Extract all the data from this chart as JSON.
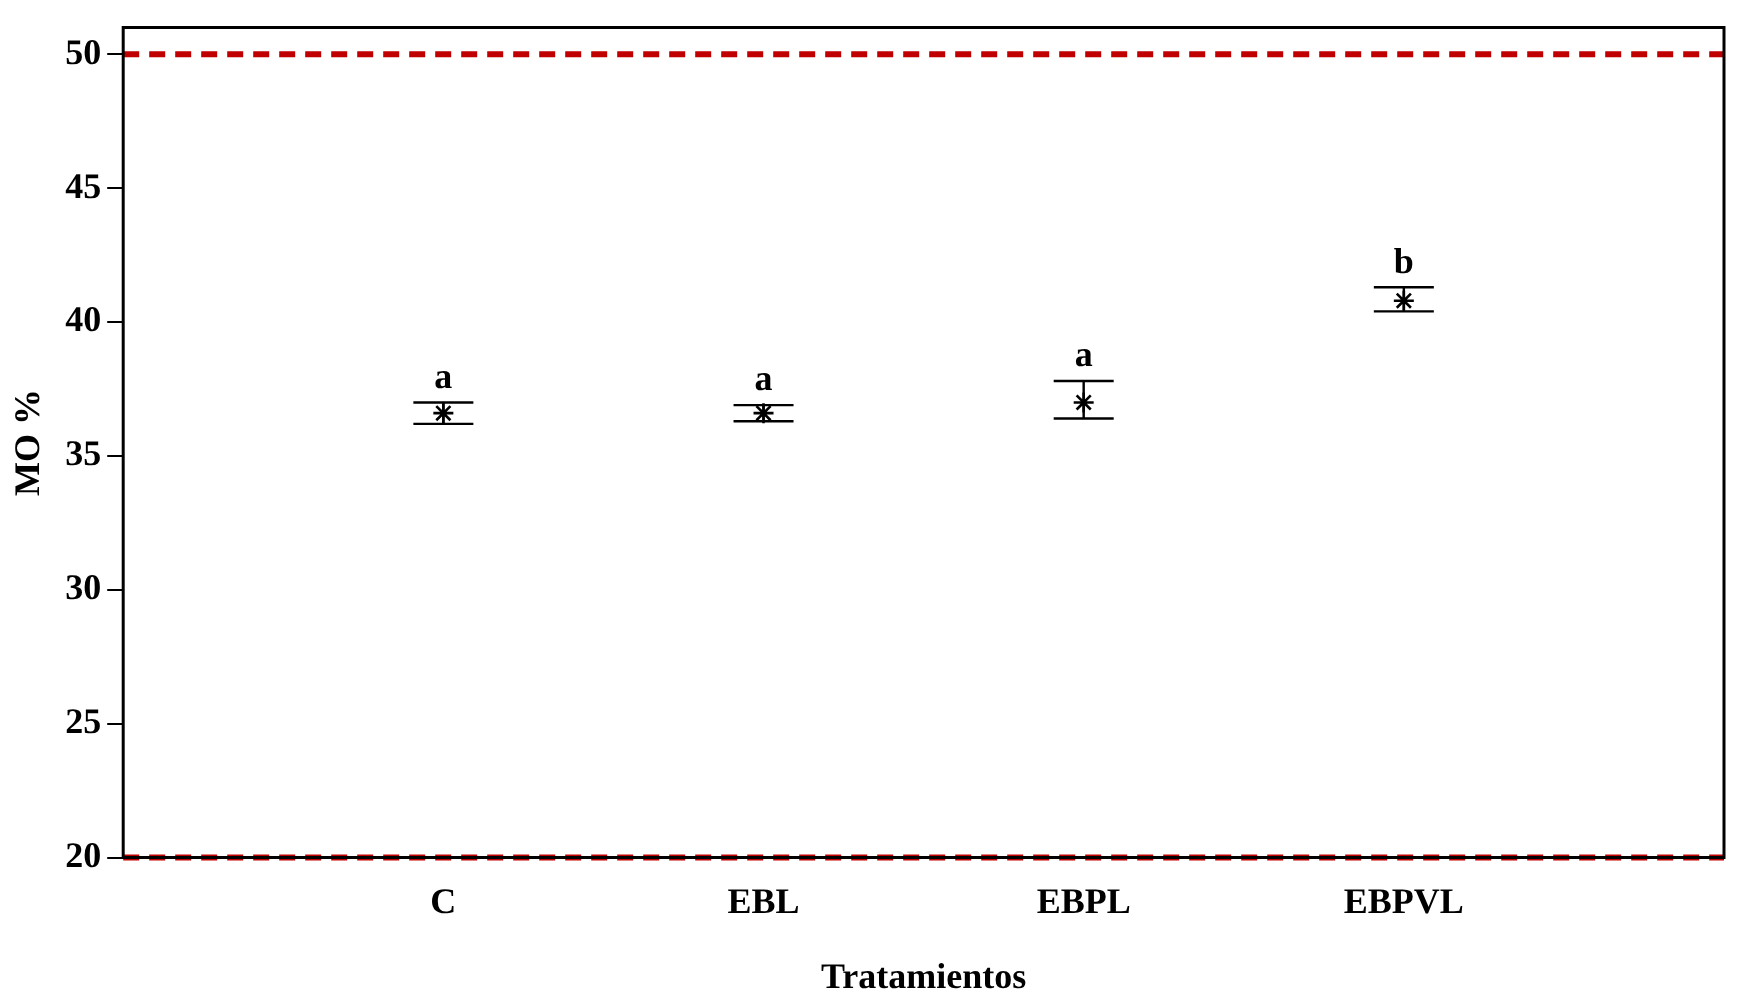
{
  "chart_data": {
    "type": "scatter",
    "xlabel": "Tratamientos",
    "ylabel": "MO %",
    "categories": [
      null,
      "C",
      "EBL",
      "EBPL",
      "EBPVL",
      null
    ],
    "series": [
      {
        "color": "#000000",
        "values": [
          null,
          36.6,
          36.6,
          37.0,
          40.8,
          null
        ],
        "errors": [
          null,
          [
            36.2,
            37.0
          ],
          [
            36.3,
            36.9
          ],
          [
            36.4,
            37.8
          ],
          [
            40.4,
            41.3
          ],
          null
        ]
      }
    ],
    "ylim": [
      20,
      51
    ],
    "yticks": [
      20,
      25,
      30,
      35,
      40,
      45,
      50
    ],
    "grid": false,
    "legend": false,
    "marker": "cross",
    "ref_lines": [
      {
        "axis": "y",
        "value": 50,
        "color": "#c00000",
        "line_style": "dashed"
      },
      {
        "axis": "y",
        "value": 20,
        "color": "#c00000",
        "line_style": "dashed"
      }
    ],
    "annotations": [
      {
        "text": "a",
        "x": "C",
        "y": 37.0
      },
      {
        "text": "a",
        "x": "EBL",
        "y": 36.9
      },
      {
        "text": "a",
        "x": "EBPL",
        "y": 37.8
      },
      {
        "text": "b",
        "x": "EBPVL",
        "y": 41.3
      }
    ]
  }
}
